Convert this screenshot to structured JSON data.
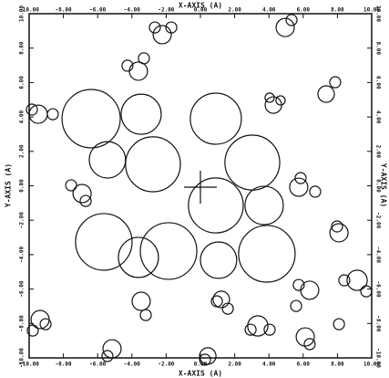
{
  "chart_data": {
    "type": "circles",
    "xlabel": "X-AXIS (A)",
    "ylabel": "Y-AXIS (A)",
    "xlim": [
      -10,
      10
    ],
    "ylim": [
      -10,
      10
    ],
    "xticks": [
      {
        "value": -10,
        "label": "-10.00"
      },
      {
        "value": -8,
        "label": "-8.00"
      },
      {
        "value": -6,
        "label": "-6.00"
      },
      {
        "value": -4,
        "label": "-4.00"
      },
      {
        "value": -2,
        "label": "-2.00"
      },
      {
        "value": 0,
        "label": "0.00"
      },
      {
        "value": 2,
        "label": "2.00"
      },
      {
        "value": 4,
        "label": "4.00"
      },
      {
        "value": 6,
        "label": "6.00"
      },
      {
        "value": 8,
        "label": "8.00"
      },
      {
        "value": 10,
        "label": "10.00"
      }
    ],
    "yticks": [
      {
        "value": -10,
        "label": "-10.00"
      },
      {
        "value": -8,
        "label": "-8.00"
      },
      {
        "value": -6,
        "label": "-6.00"
      },
      {
        "value": -4,
        "label": "-4.00"
      },
      {
        "value": -2,
        "label": "-2.00"
      },
      {
        "value": 0,
        "label": "0.00"
      },
      {
        "value": 2,
        "label": "2.00"
      },
      {
        "value": 4,
        "label": "4.00"
      },
      {
        "value": 6,
        "label": "6.00"
      },
      {
        "value": 8,
        "label": "8.00"
      },
      {
        "value": 10,
        "label": "10.00"
      }
    ],
    "color": "#111111",
    "x": [
      -6.38,
      -3.46,
      0.9,
      -5.43,
      -2.77,
      3.03,
      0.9,
      3.72,
      -5.64,
      -3.62,
      -1.86,
      1.06,
      3.88,
      -2.23,
      -2.66,
      -1.7,
      4.95,
      5.32,
      -3.62,
      -4.26,
      -3.3,
      -9.47,
      -8.62,
      -9.84,
      4.26,
      4.04,
      4.68,
      7.34,
      7.87,
      -6.91,
      -7.55,
      -6.7,
      5.74,
      5.85,
      6.7,
      8.09,
      7.98,
      9.15,
      8.4,
      9.68,
      6.38,
      5.74,
      -3.46,
      -3.19,
      1.22,
      0.96,
      1.6,
      -9.36,
      -9.79,
      -9.04,
      3.35,
      2.93,
      4.04,
      6.12,
      6.38,
      -5.16,
      -5.43,
      0.43,
      0.27,
      8.09,
      5.59
    ],
    "values": [
      3.9,
      4.16,
      3.9,
      1.51,
      1.25,
      1.35,
      -1.14,
      -1.14,
      -3.26,
      -4.16,
      -3.79,
      -4.32,
      -3.95,
      8.78,
      9.2,
      9.2,
      9.2,
      9.63,
      6.66,
      6.98,
      7.41,
      4.16,
      4.16,
      4.43,
      4.69,
      5.12,
      4.96,
      5.33,
      6.02,
      -0.45,
      0.03,
      -0.88,
      -0.08,
      0.45,
      -0.34,
      -2.73,
      -2.36,
      -5.49,
      -5.49,
      -6.13,
      -6.07,
      -5.76,
      -6.71,
      -7.51,
      -6.6,
      -6.71,
      -7.14,
      -7.77,
      -8.41,
      -8.04,
      -8.14,
      -8.36,
      -8.36,
      -8.78,
      -9.2,
      -9.47,
      -9.89,
      -9.89,
      -10.1,
      -8.04,
      -6.98
    ],
    "sizes": [
      1.7,
      1.17,
      1.49,
      1.06,
      1.6,
      1.6,
      1.6,
      1.12,
      1.65,
      1.17,
      1.65,
      1.06,
      1.65,
      0.53,
      0.32,
      0.32,
      0.53,
      0.32,
      0.53,
      0.32,
      0.32,
      0.53,
      0.32,
      0.32,
      0.48,
      0.27,
      0.27,
      0.48,
      0.32,
      0.53,
      0.32,
      0.32,
      0.53,
      0.32,
      0.32,
      0.53,
      0.32,
      0.59,
      0.32,
      0.32,
      0.53,
      0.32,
      0.53,
      0.32,
      0.48,
      0.32,
      0.32,
      0.53,
      0.32,
      0.32,
      0.59,
      0.32,
      0.32,
      0.53,
      0.32,
      0.53,
      0.32,
      0.48,
      0.32,
      0.32,
      0.32
    ]
  }
}
